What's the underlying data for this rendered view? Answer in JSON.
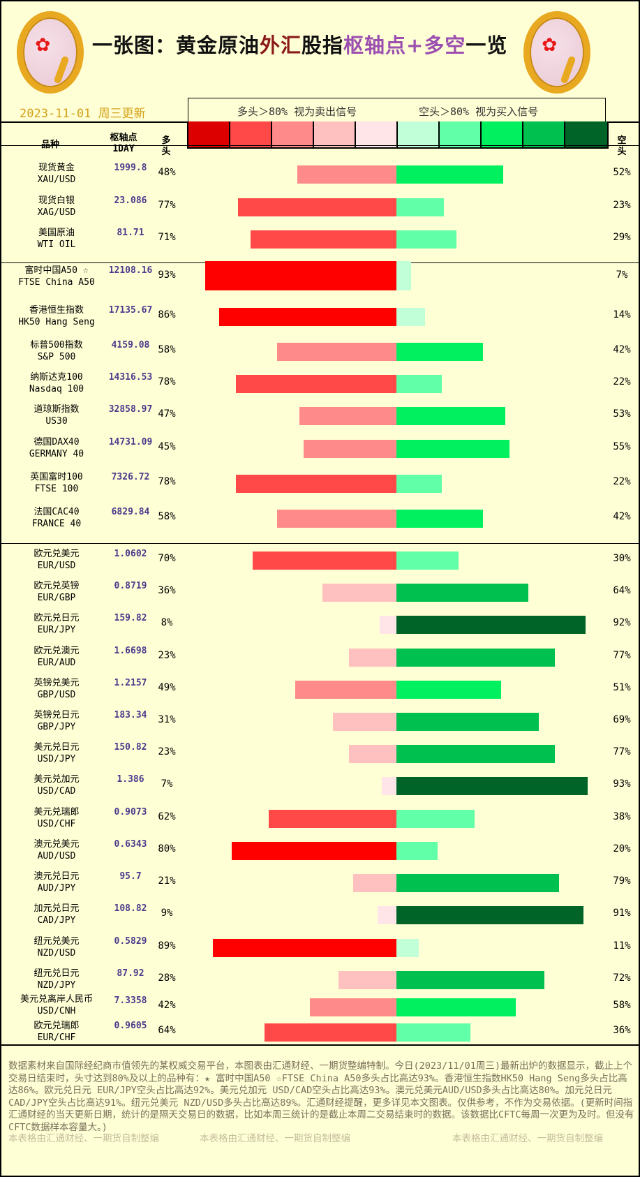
{
  "title": {
    "parts": [
      {
        "text": "一张图：黄金原油",
        "color": "#111111"
      },
      {
        "text": "外汇",
        "color": "#8B1A1A"
      },
      {
        "text": "股指",
        "color": "#111111"
      },
      {
        "text": "枢轴点+多空",
        "color": "#9B4FB0"
      },
      {
        "text": "一览",
        "color": "#111111"
      }
    ]
  },
  "date": "2023-11-01 周三更新",
  "legend": {
    "long_signal": "多头＞80% 视为卖出信号",
    "short_signal": "空头＞80% 视为买入信号",
    "colors": [
      "#DD0000",
      "#FF4848",
      "#FF8A8A",
      "#FFC0C0",
      "#FFE4E8",
      "#C0FFD8",
      "#60FFA8",
      "#00F060",
      "#00C050",
      "#006428"
    ]
  },
  "header": {
    "variety": "品种",
    "pivot": "枢轴点",
    "pivot_sub": "1DAY",
    "long": "多头",
    "short": "空头"
  },
  "colors": {
    "background": "#FFFFD6",
    "pivot_text": "#4B3C8C"
  },
  "rows": [
    {
      "cn": "现货黄金",
      "en": "XAU/USD",
      "pivot": "1999.8",
      "long": 48,
      "short": 52
    },
    {
      "cn": "现货白银",
      "en": "XAG/USD",
      "pivot": "23.086",
      "long": 77,
      "short": 23
    },
    {
      "cn": "美国原油",
      "en": "WTI OIL",
      "pivot": "81.71",
      "long": 71,
      "short": 29
    },
    {
      "cn": "富时中国A50 ☆",
      "en": "FTSE China A50",
      "pivot": "12108.16",
      "long": 93,
      "short": 7
    },
    {
      "cn": "香港恒生指数",
      "en": "HK50 Hang Seng",
      "pivot": "17135.67",
      "long": 86,
      "short": 14
    },
    {
      "cn": "标普500指数",
      "en": "S&P 500",
      "pivot": "4159.08",
      "long": 58,
      "short": 42
    },
    {
      "cn": "纳斯达克100",
      "en": "Nasdaq 100",
      "pivot": "14316.53",
      "long": 78,
      "short": 22
    },
    {
      "cn": "道琼斯指数",
      "en": "US30",
      "pivot": "32858.97",
      "long": 47,
      "short": 53
    },
    {
      "cn": "德国DAX40",
      "en": "GERMANY 40",
      "pivot": "14731.09",
      "long": 45,
      "short": 55
    },
    {
      "cn": "英国富时100",
      "en": "FTSE 100",
      "pivot": "7326.72",
      "long": 78,
      "short": 22
    },
    {
      "cn": "法国CAC40",
      "en": "FRANCE 40",
      "pivot": "6829.84",
      "long": 58,
      "short": 42
    },
    {
      "cn": "欧元兑美元",
      "en": "EUR/USD",
      "pivot": "1.0602",
      "long": 70,
      "short": 30
    },
    {
      "cn": "欧元兑英镑",
      "en": "EUR/GBP",
      "pivot": "0.8719",
      "long": 36,
      "short": 64
    },
    {
      "cn": "欧元兑日元",
      "en": "EUR/JPY",
      "pivot": "159.82",
      "long": 8,
      "short": 92
    },
    {
      "cn": "欧元兑澳元",
      "en": "EUR/AUD",
      "pivot": "1.6698",
      "long": 23,
      "short": 77
    },
    {
      "cn": "英镑兑美元",
      "en": "GBP/USD",
      "pivot": "1.2157",
      "long": 49,
      "short": 51
    },
    {
      "cn": "英镑兑日元",
      "en": "GBP/JPY",
      "pivot": "183.34",
      "long": 31,
      "short": 69
    },
    {
      "cn": "美元兑日元",
      "en": "USD/JPY",
      "pivot": "150.82",
      "long": 23,
      "short": 77
    },
    {
      "cn": "美元兑加元",
      "en": "USD/CAD",
      "pivot": "1.386",
      "long": 7,
      "short": 93
    },
    {
      "cn": "美元兑瑞郎",
      "en": "USD/CHF",
      "pivot": "0.9073",
      "long": 62,
      "short": 38
    },
    {
      "cn": "澳元兑美元",
      "en": "AUD/USD",
      "pivot": "0.6343",
      "long": 80,
      "short": 20
    },
    {
      "cn": "澳元兑日元",
      "en": "AUD/JPY",
      "pivot": "95.7",
      "long": 21,
      "short": 79
    },
    {
      "cn": "加元兑日元",
      "en": "CAD/JPY",
      "pivot": "108.82",
      "long": 9,
      "short": 91
    },
    {
      "cn": "纽元兑美元",
      "en": "NZD/USD",
      "pivot": "0.5829",
      "long": 89,
      "short": 11
    },
    {
      "cn": "纽元兑日元",
      "en": "NZD/JPY",
      "pivot": "87.92",
      "long": 28,
      "short": 72
    },
    {
      "cn": "美元兑离岸人民币",
      "en": "USD/CNH",
      "pivot": "7.3358",
      "long": 42,
      "short": 58
    },
    {
      "cn": "欧元兑瑞郎",
      "en": "EUR/CHF",
      "pivot": "0.9605",
      "long": 64,
      "short": 36
    }
  ],
  "footer": "数据素材来自国际经纪商市值领先的某权威交易平台，本图表由汇通财经、一期货整编特制。今日(2023/11/01周三)最新出炉的数据显示，截止上个交易日结束时，头寸达到80%及以上的品种有：★ 富时中国A50 ☆FTSE China A50多头占比高达93%。香港恒生指数HK50 Hang Seng多头占比高达86%。欧元兑日元 EUR/JPY空头占比高达92%。美元兑加元 USD/CAD空头占比高达93%。澳元兑美元AUD/USD多头占比高达80%。加元兑日元 CAD/JPY空头占比高达91%。纽元兑美元 NZD/USD多头占比高达89%。汇通财经提醒，更多详见本文图表。仅供参考，不作为交易依据。(更新时间指汇通财经的当天更新日期，统计的是隔天交易日的数据，比如本周三统计的是截止本周二交易结束时的数据。该数据比CFTC每周一次更为及时。但没有CFTC数据样本容量大。)",
  "credits": [
    "本表格由汇通财经、一期货自制整编",
    "本表格由汇通财经、一期货自制整编",
    "本表格由汇通财经、一期货自制整编"
  ]
}
